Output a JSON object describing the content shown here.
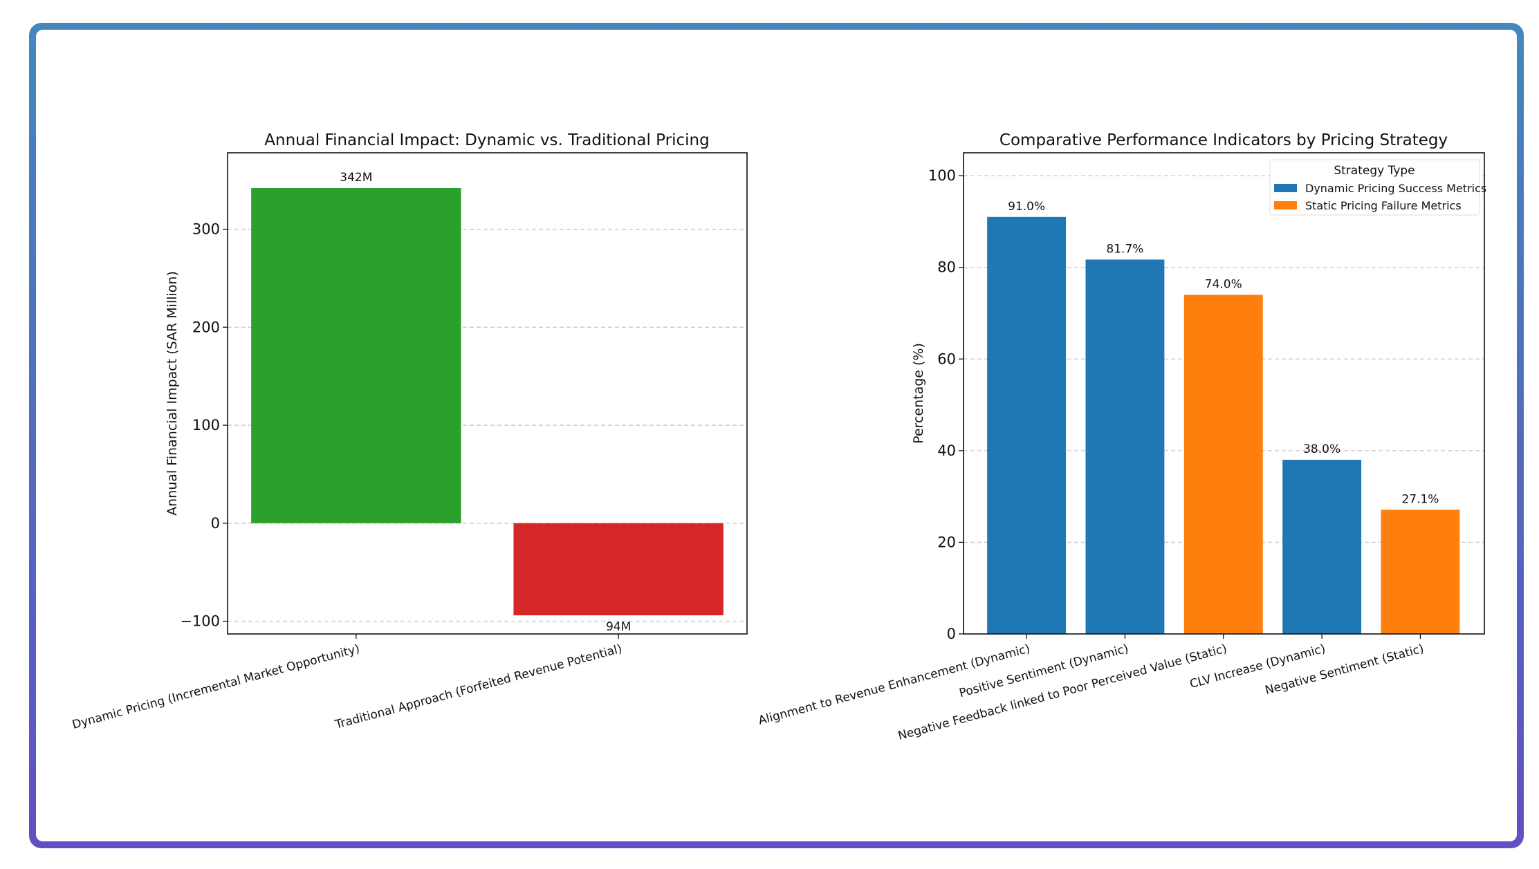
{
  "colors": {
    "frame_top": "#4387bd",
    "frame_bottom": "#6150c4",
    "green": "#2ca02c",
    "red": "#d62728",
    "blue": "#1f77b4",
    "orange": "#ff7f0e"
  },
  "chart_data": [
    {
      "type": "bar",
      "title": "Annual Financial Impact: Dynamic vs. Traditional Pricing",
      "xlabel": "",
      "ylabel": "Annual Financial Impact (SAR Million)",
      "categories": [
        "Dynamic Pricing (Incremental Market Opportunity)",
        "Traditional Approach (Forfeited Revenue Potential)"
      ],
      "values": [
        342,
        -94
      ],
      "data_labels": [
        "342M",
        "94M"
      ],
      "bar_colors": [
        "#2ca02c",
        "#d62728"
      ],
      "ylim": [
        -113,
        378
      ],
      "yticks": [
        -100,
        0,
        100,
        200,
        300
      ],
      "ytick_labels": [
        "−100",
        "0",
        "100",
        "200",
        "300"
      ],
      "grid": "y-dashed"
    },
    {
      "type": "bar",
      "title": "Comparative Performance Indicators by Pricing Strategy",
      "xlabel": "",
      "ylabel": "Percentage (%)",
      "categories": [
        "Alignment to Revenue Enhancement (Dynamic)",
        "Positive Sentiment (Dynamic)",
        "Negative Feedback linked to Poor Perceived Value (Static)",
        "CLV Increase (Dynamic)",
        "Negative Sentiment (Static)"
      ],
      "values": [
        91.0,
        81.7,
        74.0,
        38.0,
        27.1
      ],
      "data_labels": [
        "91.0%",
        "81.7%",
        "74.0%",
        "38.0%",
        "27.1%"
      ],
      "series_of_bar": [
        0,
        0,
        1,
        0,
        1
      ],
      "legend": {
        "title": "Strategy Type",
        "placement": "top-right",
        "entries": [
          {
            "name": "Dynamic Pricing Success Metrics",
            "color": "#1f77b4"
          },
          {
            "name": "Static Pricing Failure Metrics",
            "color": "#ff7f0e"
          }
        ]
      },
      "ylim": [
        0,
        105
      ],
      "yticks": [
        0,
        20,
        40,
        60,
        80,
        100
      ],
      "ytick_labels": [
        "0",
        "20",
        "40",
        "60",
        "80",
        "100"
      ],
      "grid": "y-dashed"
    }
  ]
}
